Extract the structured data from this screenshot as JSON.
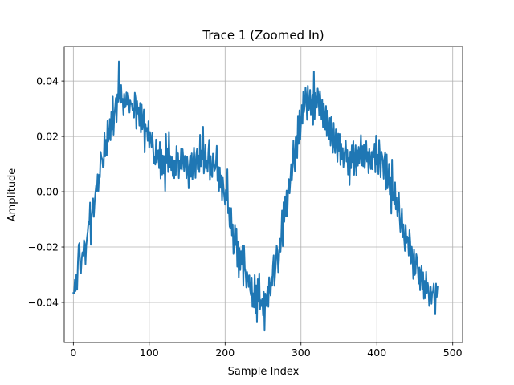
{
  "chart_data": {
    "type": "line",
    "title": "Trace 1 (Zoomed In)",
    "xlabel": "Sample Index",
    "ylabel": "Amplitude",
    "xlim": [
      -12,
      513
    ],
    "ylim": [
      -0.0545,
      0.0525
    ],
    "xticks": [
      0,
      100,
      200,
      300,
      400,
      500
    ],
    "yticks": [
      -0.04,
      -0.02,
      0.0,
      0.02,
      0.04
    ],
    "xtick_labels": [
      "0",
      "100",
      "200",
      "300",
      "400",
      "500"
    ],
    "ytick_labels": [
      "−0.04",
      "−0.02",
      "0.00",
      "0.02",
      "0.04"
    ],
    "grid": true,
    "series": [
      {
        "color": "#1f77b4",
        "x_start": 0,
        "x_step": 1,
        "values": [
          -0.0366,
          -0.0366,
          -0.0318,
          -0.0359,
          -0.0299,
          -0.0354,
          -0.0256,
          -0.0192,
          -0.0186,
          -0.0284,
          -0.0295,
          -0.0243,
          -0.0219,
          -0.0231,
          -0.0175,
          -0.0187,
          -0.0262,
          -0.0196,
          -0.0166,
          -0.0143,
          -0.0109,
          -0.0119,
          -0.0039,
          -0.0192,
          -0.0096,
          -0.0064,
          -0.0024,
          -0.0091,
          -0.0041,
          -0.0006,
          0.0022,
          0.0002,
          0.0063,
          0.0003,
          0.0061,
          0.0052,
          0.0144,
          0.0125,
          0.0118,
          0.0088,
          0.0093,
          0.0213,
          0.0128,
          0.0188,
          0.0131,
          0.0256,
          0.0181,
          0.0196,
          0.0263,
          0.0186,
          0.0288,
          0.0225,
          0.0344,
          0.0206,
          0.0276,
          0.0302,
          0.0339,
          0.0252,
          0.0352,
          0.0325,
          0.0471,
          0.0341,
          0.0321,
          0.0386,
          0.0322,
          0.0336,
          0.0279,
          0.0354,
          0.0304,
          0.031,
          0.0359,
          0.0315,
          0.0357,
          0.0335,
          0.0286,
          0.033,
          0.0317,
          0.0318,
          0.0294,
          0.03,
          0.0268,
          0.0358,
          0.0339,
          0.0228,
          0.0328,
          0.0282,
          0.0305,
          0.0239,
          0.0321,
          0.0214,
          0.0315,
          0.0226,
          0.0258,
          0.0297,
          0.0142,
          0.0246,
          0.0219,
          0.0231,
          0.0184,
          0.0255,
          0.0159,
          0.0216,
          0.0194,
          0.0162,
          0.0213,
          0.0165,
          0.0104,
          0.0125,
          0.0098,
          0.0189,
          0.0106,
          0.0148,
          0.015,
          0.0085,
          0.018,
          0.0048,
          0.0152,
          0.0062,
          0.0131,
          0.0066,
          0.0129,
          0.0003,
          0.0209,
          0.0105,
          0.0157,
          0.0071,
          0.0217,
          0.0087,
          0.0129,
          0.0078,
          0.0125,
          0.0056,
          0.0114,
          0.0049,
          0.0112,
          0.0061,
          0.0165,
          0.0114,
          0.0139,
          0.0049,
          0.0113,
          0.0083,
          0.0155,
          0.008,
          0.0154,
          0.012,
          0.0075,
          0.013,
          0.012,
          0.0049,
          0.0127,
          0.0085,
          0.0012,
          0.0092,
          0.0131,
          0.0054,
          0.0139,
          0.0044,
          0.0102,
          0.016,
          0.0101,
          0.005,
          0.0133,
          0.0155,
          0.0081,
          0.0131,
          0.0071,
          0.0206,
          0.0092,
          0.0149,
          0.0116,
          0.0235,
          0.0066,
          0.0097,
          0.0171,
          0.0084,
          0.0111,
          0.0072,
          0.0144,
          0.0188,
          0.0042,
          0.0129,
          0.0066,
          0.0053,
          0.0138,
          0.0116,
          0.0076,
          0.0083,
          0.0104,
          0.0166,
          0.0039,
          0.009,
          0.0003,
          0.0088,
          0.0014,
          0.0059,
          -0.003,
          0.0051,
          0.0011,
          -0.0018,
          -0.0047,
          0.0006,
          -0.0029,
          0.0081,
          -0.0078,
          -0.0058,
          -0.0126,
          -0.0132,
          -0.0059,
          -0.0158,
          -0.0118,
          -0.0225,
          -0.0204,
          -0.0119,
          -0.0193,
          -0.0133,
          -0.0271,
          -0.018,
          -0.031,
          -0.0204,
          -0.0283,
          -0.0215,
          -0.0264,
          -0.0195,
          -0.034,
          -0.0196,
          -0.0277,
          -0.029,
          -0.0346,
          -0.029,
          -0.0307,
          -0.0344,
          -0.0302,
          -0.0356,
          -0.0374,
          -0.031,
          -0.0416,
          -0.0367,
          -0.0418,
          -0.0301,
          -0.0438,
          -0.0338,
          -0.0472,
          -0.0316,
          -0.0397,
          -0.0295,
          -0.0426,
          -0.0392,
          -0.0413,
          -0.0386,
          -0.0447,
          -0.0362,
          -0.0502,
          -0.0368,
          -0.0413,
          -0.0387,
          -0.0342,
          -0.0416,
          -0.0309,
          -0.0346,
          -0.0375,
          -0.0308,
          -0.034,
          -0.0268,
          -0.023,
          -0.034,
          -0.0296,
          -0.0254,
          -0.0195,
          -0.0214,
          -0.0291,
          -0.0248,
          -0.017,
          -0.0217,
          -0.0165,
          -0.0068,
          -0.0197,
          -0.0038,
          -0.0109,
          -0.0017,
          -0.0089,
          0.0004,
          -0.0089,
          0.0005,
          0.0046,
          -0.0006,
          0.0041,
          0.01,
          0.004,
          0.0092,
          0.0185,
          0.0113,
          0.0074,
          0.0196,
          0.0202,
          0.0122,
          0.0275,
          0.0173,
          0.0294,
          0.019,
          0.0247,
          0.0313,
          0.0246,
          0.0361,
          0.0287,
          0.0314,
          0.0376,
          0.0339,
          0.026,
          0.0383,
          0.0293,
          0.0303,
          0.0368,
          0.0279,
          0.0311,
          0.0351,
          0.0242,
          0.0435,
          0.0263,
          0.0357,
          0.033,
          0.0304,
          0.0373,
          0.0346,
          0.0276,
          0.0364,
          0.0319,
          0.0262,
          0.0333,
          0.0234,
          0.0319,
          0.0271,
          0.0225,
          0.031,
          0.0201,
          0.0293,
          0.0229,
          0.0191,
          0.0267,
          0.0167,
          0.0271,
          0.0199,
          0.0141,
          0.0249,
          0.0171,
          0.014,
          0.0226,
          0.0181,
          0.0108,
          0.021,
          0.0148,
          0.0209,
          0.0097,
          0.0174,
          0.0117,
          0.0158,
          0.0089,
          0.0132,
          0.0151,
          0.0184,
          0.0109,
          0.0151,
          0.0062,
          0.0122,
          0.0024,
          0.0145,
          0.0085,
          0.0168,
          0.0107,
          0.0183,
          0.0061,
          0.0115,
          0.0168,
          0.0059,
          0.015,
          0.0094,
          0.0162,
          0.0104,
          0.0136,
          0.0205,
          0.0095,
          0.0165,
          0.0092,
          0.0171,
          0.0085,
          0.0133,
          0.0183,
          0.0109,
          0.0144,
          0.0067,
          0.0155,
          0.0117,
          0.0082,
          0.0144,
          0.0081,
          0.0148,
          0.0125,
          0.0174,
          0.007,
          0.0203,
          0.0098,
          0.0134,
          0.0064,
          0.0188,
          0.0135,
          0.0052,
          0.0145,
          0.0131,
          0.011,
          0.0047,
          0.0118,
          0.0143,
          0.0008,
          0.0135,
          0.0012,
          0.0034,
          0.0101,
          -0.001,
          0.005,
          -0.0079,
          0.0116,
          -0.003,
          -0.0001,
          -0.0045,
          0.0034,
          -0.0064,
          -0.002,
          -0.0087,
          -0.0053,
          -0.0004,
          -0.0095,
          -0.0145,
          -0.011,
          -0.006,
          -0.0165,
          -0.0118,
          -0.0172,
          -0.0214,
          -0.0119,
          -0.0185,
          -0.0162,
          -0.0168,
          -0.0231,
          -0.0139,
          -0.0181,
          -0.026,
          -0.0199,
          -0.0241,
          -0.0315,
          -0.0209,
          -0.0301,
          -0.0293,
          -0.0226,
          -0.0242,
          -0.0278,
          -0.0332,
          -0.0274,
          -0.0356,
          -0.029,
          -0.0268,
          -0.0353,
          -0.0291,
          -0.0387,
          -0.0322,
          -0.0385,
          -0.0289,
          -0.0366,
          -0.0329,
          -0.0348,
          -0.0413,
          -0.038,
          -0.0344,
          -0.0405,
          -0.0363,
          -0.0363,
          -0.0332,
          -0.0406,
          -0.0443,
          -0.0332,
          -0.038,
          -0.0342
        ]
      }
    ]
  }
}
